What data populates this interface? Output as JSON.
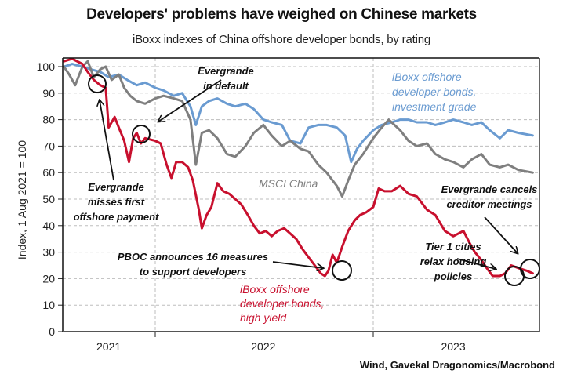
{
  "chart_data": {
    "type": "line",
    "title": "Developers' problems have weighed on Chinese markets",
    "subtitle": "iBoxx indexes of China offshore developer bonds, by rating",
    "source": "Wind, Gavekal Dragonomics/Macrobond",
    "ylabel": "Index, 1 Aug 2021 = 100",
    "xlabel": "",
    "ylim": [
      0,
      100
    ],
    "yticks": [
      0,
      10,
      20,
      30,
      40,
      50,
      60,
      70,
      80,
      90,
      100
    ],
    "ytick_labels": [
      "0",
      "10",
      "20",
      "30",
      "40",
      "50",
      "60",
      "70",
      "80",
      "90",
      "100"
    ],
    "xlim": [
      "2021-08-01",
      "2023-09-30"
    ],
    "year_boundaries": [
      "2022-01-01",
      "2023-01-01"
    ],
    "xtick_labels": [
      {
        "label": "2021",
        "center": "2021-10-15"
      },
      {
        "label": "2022",
        "center": "2022-07-01"
      },
      {
        "label": "2023",
        "center": "2023-05-15"
      }
    ],
    "grid": true,
    "legend": "inline-labels",
    "series": [
      {
        "name": "iBoxx offshore developer bonds, investment grade",
        "label_lines": [
          "iBoxx offshore",
          "developer bonds,",
          "investment grade"
        ],
        "color": "#6a9bd1",
        "points": [
          [
            "2021-08-01",
            100
          ],
          [
            "2021-08-15",
            101
          ],
          [
            "2021-09-01",
            100
          ],
          [
            "2021-09-15",
            99
          ],
          [
            "2021-10-01",
            98
          ],
          [
            "2021-10-15",
            96
          ],
          [
            "2021-11-01",
            97
          ],
          [
            "2021-11-15",
            95
          ],
          [
            "2021-12-01",
            93
          ],
          [
            "2021-12-15",
            94
          ],
          [
            "2022-01-01",
            92
          ],
          [
            "2022-01-15",
            91
          ],
          [
            "2022-02-01",
            89
          ],
          [
            "2022-02-15",
            90
          ],
          [
            "2022-03-01",
            85
          ],
          [
            "2022-03-10",
            78
          ],
          [
            "2022-03-20",
            85
          ],
          [
            "2022-04-01",
            87
          ],
          [
            "2022-04-15",
            88
          ],
          [
            "2022-05-01",
            86
          ],
          [
            "2022-05-15",
            85
          ],
          [
            "2022-06-01",
            86
          ],
          [
            "2022-06-15",
            84
          ],
          [
            "2022-07-01",
            80
          ],
          [
            "2022-07-15",
            79
          ],
          [
            "2022-08-01",
            78
          ],
          [
            "2022-08-15",
            72
          ],
          [
            "2022-09-01",
            71
          ],
          [
            "2022-09-15",
            77
          ],
          [
            "2022-10-01",
            78
          ],
          [
            "2022-10-15",
            78
          ],
          [
            "2022-11-01",
            77
          ],
          [
            "2022-11-15",
            74
          ],
          [
            "2022-11-25",
            64
          ],
          [
            "2022-12-05",
            69
          ],
          [
            "2022-12-15",
            72
          ],
          [
            "2023-01-01",
            76
          ],
          [
            "2023-01-15",
            78
          ],
          [
            "2023-02-01",
            79
          ],
          [
            "2023-02-15",
            80
          ],
          [
            "2023-03-01",
            80
          ],
          [
            "2023-03-15",
            79
          ],
          [
            "2023-04-01",
            79
          ],
          [
            "2023-04-15",
            78
          ],
          [
            "2023-05-01",
            79
          ],
          [
            "2023-05-15",
            80
          ],
          [
            "2023-06-01",
            79
          ],
          [
            "2023-06-15",
            78
          ],
          [
            "2023-07-01",
            79
          ],
          [
            "2023-07-15",
            76
          ],
          [
            "2023-08-01",
            73
          ],
          [
            "2023-08-15",
            76
          ],
          [
            "2023-09-01",
            75
          ],
          [
            "2023-09-25",
            74
          ]
        ]
      },
      {
        "name": "MSCI China",
        "label_lines": [
          "MSCI China"
        ],
        "color": "#7f7f7f",
        "points": [
          [
            "2021-08-01",
            100
          ],
          [
            "2021-08-10",
            97
          ],
          [
            "2021-08-20",
            93
          ],
          [
            "2021-09-01",
            100
          ],
          [
            "2021-09-10",
            102
          ],
          [
            "2021-09-20",
            96
          ],
          [
            "2021-10-01",
            99
          ],
          [
            "2021-10-10",
            100
          ],
          [
            "2021-10-20",
            95
          ],
          [
            "2021-11-01",
            97
          ],
          [
            "2021-11-10",
            92
          ],
          [
            "2021-11-20",
            89
          ],
          [
            "2021-12-01",
            87
          ],
          [
            "2021-12-15",
            86
          ],
          [
            "2022-01-01",
            88
          ],
          [
            "2022-01-15",
            89
          ],
          [
            "2022-02-01",
            88
          ],
          [
            "2022-02-15",
            87
          ],
          [
            "2022-03-01",
            80
          ],
          [
            "2022-03-10",
            63
          ],
          [
            "2022-03-20",
            75
          ],
          [
            "2022-04-01",
            76
          ],
          [
            "2022-04-15",
            73
          ],
          [
            "2022-05-01",
            67
          ],
          [
            "2022-05-15",
            66
          ],
          [
            "2022-06-01",
            70
          ],
          [
            "2022-06-15",
            75
          ],
          [
            "2022-07-01",
            78
          ],
          [
            "2022-07-15",
            74
          ],
          [
            "2022-08-01",
            70
          ],
          [
            "2022-08-15",
            72
          ],
          [
            "2022-09-01",
            69
          ],
          [
            "2022-09-15",
            68
          ],
          [
            "2022-10-01",
            63
          ],
          [
            "2022-10-15",
            60
          ],
          [
            "2022-11-01",
            55
          ],
          [
            "2022-11-10",
            51
          ],
          [
            "2022-11-20",
            57
          ],
          [
            "2022-12-01",
            63
          ],
          [
            "2022-12-15",
            67
          ],
          [
            "2023-01-01",
            73
          ],
          [
            "2023-01-15",
            77
          ],
          [
            "2023-01-27",
            80
          ],
          [
            "2023-02-15",
            76
          ],
          [
            "2023-03-01",
            72
          ],
          [
            "2023-03-15",
            70
          ],
          [
            "2023-04-01",
            71
          ],
          [
            "2023-04-15",
            67
          ],
          [
            "2023-05-01",
            65
          ],
          [
            "2023-05-15",
            64
          ],
          [
            "2023-06-01",
            62
          ],
          [
            "2023-06-15",
            65
          ],
          [
            "2023-07-01",
            67
          ],
          [
            "2023-07-15",
            63
          ],
          [
            "2023-08-01",
            62
          ],
          [
            "2023-08-15",
            63
          ],
          [
            "2023-09-01",
            61
          ],
          [
            "2023-09-25",
            60
          ]
        ]
      },
      {
        "name": "iBoxx offshore developer bonds, high yield",
        "label_lines": [
          "iBoxx offshore",
          "developer bonds,",
          "high yield"
        ],
        "color": "#c8102e",
        "points": [
          [
            "2021-08-01",
            102
          ],
          [
            "2021-08-15",
            103
          ],
          [
            "2021-09-01",
            101
          ],
          [
            "2021-09-10",
            98
          ],
          [
            "2021-09-20",
            95
          ],
          [
            "2021-10-01",
            93
          ],
          [
            "2021-10-10",
            92
          ],
          [
            "2021-10-15",
            77
          ],
          [
            "2021-10-25",
            81
          ],
          [
            "2021-11-01",
            77
          ],
          [
            "2021-11-10",
            72
          ],
          [
            "2021-11-18",
            64
          ],
          [
            "2021-11-25",
            73
          ],
          [
            "2021-12-01",
            75
          ],
          [
            "2021-12-08",
            71
          ],
          [
            "2021-12-15",
            73
          ],
          [
            "2022-01-01",
            72
          ],
          [
            "2022-01-10",
            71
          ],
          [
            "2022-01-20",
            63
          ],
          [
            "2022-01-28",
            58
          ],
          [
            "2022-02-05",
            64
          ],
          [
            "2022-02-15",
            64
          ],
          [
            "2022-02-25",
            62
          ],
          [
            "2022-03-05",
            57
          ],
          [
            "2022-03-15",
            46
          ],
          [
            "2022-03-20",
            39
          ],
          [
            "2022-03-28",
            44
          ],
          [
            "2022-04-05",
            47
          ],
          [
            "2022-04-15",
            56
          ],
          [
            "2022-04-25",
            53
          ],
          [
            "2022-05-05",
            52
          ],
          [
            "2022-05-15",
            50
          ],
          [
            "2022-05-25",
            48
          ],
          [
            "2022-06-05",
            44
          ],
          [
            "2022-06-15",
            40
          ],
          [
            "2022-06-25",
            37
          ],
          [
            "2022-07-05",
            38
          ],
          [
            "2022-07-15",
            36
          ],
          [
            "2022-07-25",
            38
          ],
          [
            "2022-08-05",
            39
          ],
          [
            "2022-08-15",
            37
          ],
          [
            "2022-08-25",
            35
          ],
          [
            "2022-09-05",
            31
          ],
          [
            "2022-09-15",
            28
          ],
          [
            "2022-09-25",
            25
          ],
          [
            "2022-10-05",
            22
          ],
          [
            "2022-10-12",
            21
          ],
          [
            "2022-10-18",
            23
          ],
          [
            "2022-10-25",
            29
          ],
          [
            "2022-11-01",
            26
          ],
          [
            "2022-11-10",
            32
          ],
          [
            "2022-11-20",
            38
          ],
          [
            "2022-12-01",
            42
          ],
          [
            "2022-12-10",
            44
          ],
          [
            "2022-12-20",
            45
          ],
          [
            "2023-01-01",
            47
          ],
          [
            "2023-01-10",
            54
          ],
          [
            "2023-01-20",
            53
          ],
          [
            "2023-02-01",
            53
          ],
          [
            "2023-02-15",
            55
          ],
          [
            "2023-03-01",
            52
          ],
          [
            "2023-03-15",
            51
          ],
          [
            "2023-04-01",
            46
          ],
          [
            "2023-04-15",
            44
          ],
          [
            "2023-05-01",
            38
          ],
          [
            "2023-05-15",
            36
          ],
          [
            "2023-06-01",
            38
          ],
          [
            "2023-06-10",
            34
          ],
          [
            "2023-06-20",
            30
          ],
          [
            "2023-07-01",
            27
          ],
          [
            "2023-07-10",
            24
          ],
          [
            "2023-07-20",
            21
          ],
          [
            "2023-08-01",
            21
          ],
          [
            "2023-08-10",
            22
          ],
          [
            "2023-08-20",
            25
          ],
          [
            "2023-09-01",
            24
          ],
          [
            "2023-09-15",
            23
          ],
          [
            "2023-09-25",
            22
          ]
        ]
      }
    ],
    "annotations": [
      {
        "id": "evergrande-misses-payment",
        "lines": [
          "Evergrande",
          "misses first",
          "offshore payment"
        ],
        "date": "2021-09-23",
        "value": 94
      },
      {
        "id": "evergrande-default",
        "lines": [
          "Evergrande",
          "in default"
        ],
        "date": "2021-12-09",
        "value": 74
      },
      {
        "id": "pboc-16-measures",
        "lines": [
          "PBOC announces 16 measures",
          "to support developers"
        ],
        "date": "2022-11-11",
        "value": 23
      },
      {
        "id": "tier1-relax-housing",
        "lines": [
          "Tier 1 cities",
          "relax housing",
          "policies"
        ],
        "date": "2023-08-31",
        "value": 21
      },
      {
        "id": "evergrande-cancels-meetings",
        "lines": [
          "Evergrande cancels",
          "creditor meetings"
        ],
        "date": "2023-09-22",
        "value": 24
      }
    ]
  }
}
